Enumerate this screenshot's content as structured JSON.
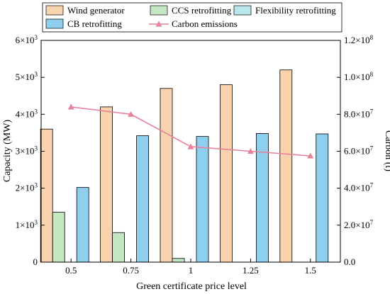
{
  "chart_data": {
    "type": "bar",
    "categories": [
      "0.5",
      "0.75",
      "1",
      "1.25",
      "1.5"
    ],
    "xlabel": "Green certificate price level",
    "ylabel_left": "Capacity (MW)",
    "ylabel_right": "Carbon (t)",
    "ylim_left": [
      0,
      6000
    ],
    "ylim_right": [
      0,
      120000000
    ],
    "left_tick_labels": [
      {
        "mant": "0",
        "exp": ""
      },
      {
        "mant": "1×10",
        "exp": "3"
      },
      {
        "mant": "2×10",
        "exp": "3"
      },
      {
        "mant": "3×10",
        "exp": "3"
      },
      {
        "mant": "4×10",
        "exp": "3"
      },
      {
        "mant": "5×10",
        "exp": "3"
      },
      {
        "mant": "6×10",
        "exp": "3"
      }
    ],
    "right_tick_labels": [
      {
        "mant": "0.0",
        "exp": ""
      },
      {
        "mant": "2.0×10",
        "exp": "7"
      },
      {
        "mant": "4.0×10",
        "exp": "7"
      },
      {
        "mant": "6.0×10",
        "exp": "7"
      },
      {
        "mant": "8.0×10",
        "exp": "7"
      },
      {
        "mant": "1.0×10",
        "exp": "8"
      },
      {
        "mant": "1.2×10",
        "exp": "8"
      }
    ],
    "series": [
      {
        "name": "Wind generator",
        "type": "bar",
        "axis": "left",
        "color": "#f9d3ae",
        "values": [
          3600,
          4200,
          4700,
          4800,
          5200
        ]
      },
      {
        "name": "CCS retrofitting",
        "type": "bar",
        "axis": "left",
        "color": "#c4e6c2",
        "values": [
          1350,
          800,
          100,
          0,
          0
        ]
      },
      {
        "name": "Flexibility retrofitting",
        "type": "bar",
        "axis": "left",
        "color": "#b8e6ea",
        "values": [
          0,
          0,
          0,
          0,
          0
        ]
      },
      {
        "name": "CB retrofitting",
        "type": "bar",
        "axis": "left",
        "color": "#8ecfee",
        "values": [
          2020,
          3420,
          3400,
          3480,
          3470
        ]
      },
      {
        "name": "Carbon emissions",
        "type": "line",
        "axis": "right",
        "color": "#e8829a",
        "values": [
          84000000,
          80000000,
          62500000,
          60000000,
          57500000
        ]
      }
    ],
    "legend_position": "top"
  }
}
